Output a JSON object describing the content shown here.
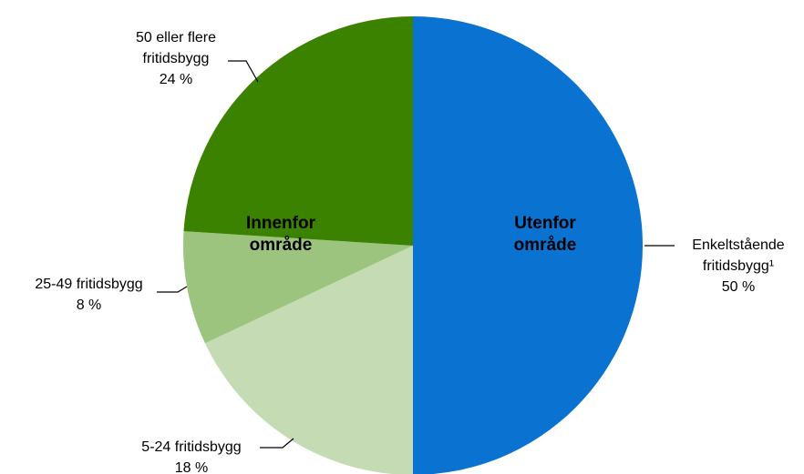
{
  "chart_data": {
    "type": "pie",
    "categories": [
      "Enkeltstående fritidsbygg¹",
      "5-24 fritidsbygg",
      "25-49 fritidsbygg",
      "50 eller flere fritidsbygg"
    ],
    "values": [
      50,
      18,
      8,
      24
    ],
    "value_labels": [
      "50 %",
      "18 %",
      "8 %",
      "24 %"
    ],
    "colors": [
      "#0a72d0",
      "#c5dbb3",
      "#9dc47e",
      "#3b8200"
    ],
    "annotations": [
      "Utenfor område",
      "Innenfor område"
    ]
  }
}
